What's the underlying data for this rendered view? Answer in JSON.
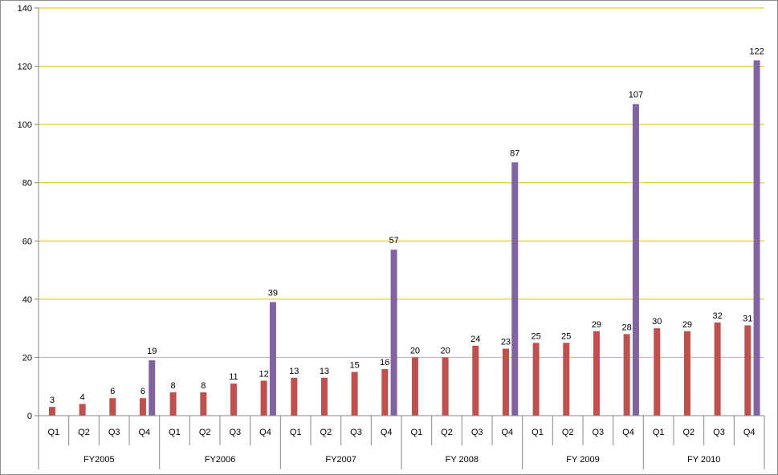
{
  "chart_data": {
    "type": "bar",
    "title": "",
    "xlabel": "",
    "ylabel": "",
    "ylim": [
      0,
      140
    ],
    "yticks": [
      0,
      20,
      40,
      60,
      80,
      100,
      120,
      140
    ],
    "grid": true,
    "legend": "none",
    "groups": [
      {
        "label": "FY2005",
        "quarters": [
          "Q1",
          "Q2",
          "Q3",
          "Q4"
        ],
        "values": [
          3,
          4,
          6,
          6
        ],
        "cumulative": 19
      },
      {
        "label": "FY2006",
        "quarters": [
          "Q1",
          "Q2",
          "Q3",
          "Q4"
        ],
        "values": [
          8,
          8,
          11,
          12
        ],
        "cumulative": 39
      },
      {
        "label": "FY2007",
        "quarters": [
          "Q1",
          "Q2",
          "Q3",
          "Q4"
        ],
        "values": [
          13,
          13,
          15,
          16
        ],
        "cumulative": 57
      },
      {
        "label": "FY 2008",
        "quarters": [
          "Q1",
          "Q2",
          "Q3",
          "Q4"
        ],
        "values": [
          20,
          20,
          24,
          23
        ],
        "cumulative": 87
      },
      {
        "label": "FY 2009",
        "quarters": [
          "Q1",
          "Q2",
          "Q3",
          "Q4"
        ],
        "values": [
          25,
          25,
          29,
          28
        ],
        "cumulative": 107
      },
      {
        "label": "FY 2010",
        "quarters": [
          "Q1",
          "Q2",
          "Q3",
          "Q4"
        ],
        "values": [
          30,
          29,
          32,
          31
        ],
        "cumulative": 122
      }
    ],
    "colors": {
      "quarterly": "#c0504d",
      "cumulative": "#8064a2",
      "gridline": "#e6c200",
      "axis": "#868686"
    }
  }
}
